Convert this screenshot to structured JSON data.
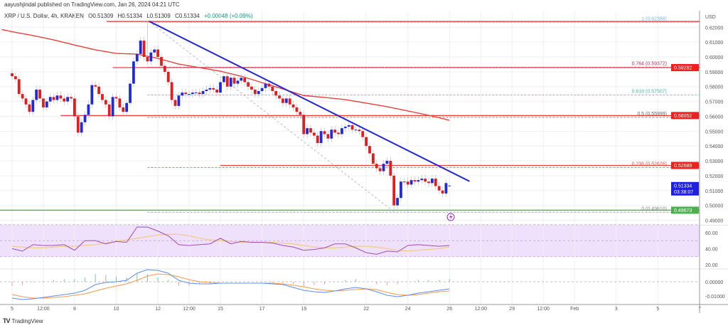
{
  "header": {
    "published": "aayushjindal published on TradingView.com, Jan 26, 2024 04:21 UTC",
    "symbol": "XRP / U.S. Dollar, 4h, KRAKEN",
    "open": "O0.51309",
    "high": "H0.51334",
    "low": "L0.51309",
    "close": "C0.51334",
    "change": "+0.00048 (+0.09%)"
  },
  "brand": {
    "logo": "TV",
    "name": "TradingView"
  },
  "colors": {
    "up": "#1e2bd6",
    "down": "#e01e1e",
    "sma": "#e8413c",
    "trendline": "#2626d9",
    "support": "#4caf50",
    "rsi": "#9c4fb0",
    "rsi_ma": "#f5c98a",
    "rsi_band": "#efe0fb",
    "macd": "#5b8ff0",
    "signal": "#f59a4a",
    "last_price": "#1f1fe0"
  },
  "chart_data": [
    {
      "type": "candlestick",
      "interval": "4h",
      "start": "2024-01-05T00:00",
      "currency_label": "USD",
      "candles": {
        "close": [
          0.587,
          0.585,
          0.575,
          0.572,
          0.568,
          0.563,
          0.571,
          0.578,
          0.572,
          0.566,
          0.57,
          0.573,
          0.571,
          0.574,
          0.572,
          0.57,
          0.573,
          0.572,
          0.56,
          0.549,
          0.556,
          0.561,
          0.568,
          0.581,
          0.58,
          0.575,
          0.571,
          0.568,
          0.56,
          0.573,
          0.572,
          0.566,
          0.563,
          0.569,
          0.582,
          0.597,
          0.602,
          0.611,
          0.6,
          0.597,
          0.603,
          0.605,
          0.6,
          0.594,
          0.59,
          0.583,
          0.571,
          0.567,
          0.574,
          0.576,
          0.575,
          0.575,
          0.576,
          0.576,
          0.575,
          0.577,
          0.578,
          0.579,
          0.578,
          0.576,
          0.583,
          0.587,
          0.58,
          0.586,
          0.582,
          0.584,
          0.586,
          0.583,
          0.58,
          0.578,
          0.575,
          0.577,
          0.579,
          0.582,
          0.58,
          0.577,
          0.574,
          0.572,
          0.569,
          0.572,
          0.568,
          0.566,
          0.563,
          0.561,
          0.548,
          0.552,
          0.549,
          0.547,
          0.542,
          0.55,
          0.548,
          0.545,
          0.551,
          0.549,
          0.548,
          0.552,
          0.553,
          0.554,
          0.551,
          0.551,
          0.55,
          0.546,
          0.54,
          0.535,
          0.528,
          0.525,
          0.523,
          0.528,
          0.53,
          0.52,
          0.5,
          0.505,
          0.516,
          0.516,
          0.514,
          0.517,
          0.516,
          0.517,
          0.518,
          0.516,
          0.515,
          0.518,
          0.513,
          0.51,
          0.508,
          0.515,
          0.51334
        ],
        "last": {
          "open": 0.51309,
          "high": 0.51334,
          "low": 0.51309,
          "close": 0.51334
        },
        "swing_high": {
          "date": "2024-01-11T12:00",
          "price": 0.62388
        },
        "swing_low": {
          "date": "2024-01-23T08:00",
          "price": 0.4961
        }
      },
      "sma": [
        {
          "date": "2024-01-04T12:00",
          "value": 0.6185
        },
        {
          "date": "2024-01-05T00:00",
          "value": 0.617
        },
        {
          "date": "2024-01-06T00:00",
          "value": 0.6144
        },
        {
          "date": "2024-01-07T00:00",
          "value": 0.6115
        },
        {
          "date": "2024-01-08T00:00",
          "value": 0.608
        },
        {
          "date": "2024-01-09T00:00",
          "value": 0.6048
        },
        {
          "date": "2024-01-10T00:00",
          "value": 0.6024
        },
        {
          "date": "2024-01-11T00:00",
          "value": 0.6019
        },
        {
          "date": "2024-01-12T00:00",
          "value": 0.599
        },
        {
          "date": "2024-01-13T00:00",
          "value": 0.5952
        },
        {
          "date": "2024-01-14T00:00",
          "value": 0.5928
        },
        {
          "date": "2024-01-15T00:00",
          "value": 0.5904
        },
        {
          "date": "2024-01-16T00:00",
          "value": 0.587
        },
        {
          "date": "2024-01-17T00:00",
          "value": 0.5827
        },
        {
          "date": "2024-01-18T00:00",
          "value": 0.5784
        },
        {
          "date": "2024-01-19T00:00",
          "value": 0.574
        },
        {
          "date": "2024-01-20T00:00",
          "value": 0.5727
        },
        {
          "date": "2024-01-21T00:00",
          "value": 0.5712
        },
        {
          "date": "2024-01-22T00:00",
          "value": 0.5689
        },
        {
          "date": "2024-01-23T00:00",
          "value": 0.5665
        },
        {
          "date": "2024-01-24T00:00",
          "value": 0.5636
        },
        {
          "date": "2024-01-25T00:00",
          "value": 0.5607
        },
        {
          "date": "2024-01-26T00:00",
          "value": 0.5573
        }
      ],
      "trendline": {
        "from": {
          "date": "2024-01-11T14:00",
          "price": 0.624
        },
        "to": {
          "date": "2024-01-26T23:00",
          "price": 0.5162
        }
      },
      "fib_guide": {
        "from": {
          "date": "2024-01-11T14:00",
          "price": 0.62388
        },
        "to": {
          "date": "2024-01-23T07:00",
          "price": 0.4961
        }
      },
      "horizontal_lines": [
        {
          "price": 0.62388,
          "from": "2024-01-09T13:00",
          "color": "#e8413c",
          "style": "solid"
        },
        {
          "price": 0.59282,
          "from": "2024-01-09T20:00",
          "color": "#e8413c",
          "style": "solid"
        },
        {
          "price": 0.56052,
          "from": "2024-01-07T08:00",
          "color": "#e8413c",
          "style": "solid"
        },
        {
          "price": 0.52689,
          "from": "2024-01-15T00:00",
          "color": "#e8413c",
          "style": "solid"
        },
        {
          "price": 0.49673,
          "from": "2024-01-04T00:00",
          "color": "#4caf50",
          "style": "solid"
        }
      ],
      "fib_levels": [
        {
          "label": "1 (0.62388)",
          "price": 0.62388,
          "color": "#7fb2d9"
        },
        {
          "label": "0.764 (0.59372)",
          "price": 0.59372,
          "color": "#b0345a"
        },
        {
          "label": "0.618 (0.57507)",
          "price": 0.57507,
          "color": "#3fbf9f"
        },
        {
          "label": "0.5 (0.55999)",
          "price": 0.55999,
          "color": "#666666"
        },
        {
          "label": "0.236 (0.52626)",
          "price": 0.52626,
          "color": "#d9534f"
        },
        {
          "label": "0 (0.49610)",
          "price": 0.4961,
          "color": "#888888"
        }
      ],
      "fib_from": "2024-01-11T12:00",
      "price_badges": [
        {
          "text": "0.59282",
          "price": 0.59282,
          "color": "#f21f1f"
        },
        {
          "text": "0.56052",
          "price": 0.56052,
          "color": "#f21f1f"
        },
        {
          "text": "0.52689",
          "price": 0.52689,
          "color": "#f21f1f"
        },
        {
          "text": "0.51334",
          "sub": "03:38:07",
          "price": 0.51334,
          "color": "#1f1fe0"
        },
        {
          "text": "0.49673",
          "price": 0.49673,
          "color": "#4caf50"
        }
      ],
      "yaxis": {
        "ticks": [
          "0.62000",
          "0.61000",
          "0.60000",
          "0.59000",
          "0.58000",
          "0.57000",
          "0.56000",
          "0.55000",
          "0.54000",
          "0.53000",
          "0.52000",
          "0.51000",
          "0.50000",
          "0.49000"
        ],
        "ylim": [
          0.485,
          0.63
        ]
      },
      "xaxis": {
        "ticks": [
          {
            "label": "5",
            "date": "2024-01-05T00:00"
          },
          {
            "label": "12:00",
            "date": "2024-01-06T12:00"
          },
          {
            "label": "8",
            "date": "2024-01-08T00:00"
          },
          {
            "label": "10",
            "date": "2024-01-10T00:00"
          },
          {
            "label": "12",
            "date": "2024-01-12T00:00"
          },
          {
            "label": "12:00",
            "date": "2024-01-13T12:00"
          },
          {
            "label": "15",
            "date": "2024-01-15T00:00"
          },
          {
            "label": "17",
            "date": "2024-01-17T00:00"
          },
          {
            "label": "19",
            "date": "2024-01-19T00:00"
          },
          {
            "label": "22",
            "date": "2024-01-22T00:00"
          },
          {
            "label": "24",
            "date": "2024-01-24T00:00"
          },
          {
            "label": "26",
            "date": "2024-01-26T00:00"
          },
          {
            "label": "12:00",
            "date": "2024-01-27T12:00"
          },
          {
            "label": "29",
            "date": "2024-01-29T00:00"
          },
          {
            "label": "12:00",
            "date": "2024-01-30T12:00"
          },
          {
            "label": "Feb",
            "date": "2024-02-01T00:00"
          },
          {
            "label": "3",
            "date": "2024-02-03T00:00"
          },
          {
            "label": "5",
            "date": "2024-02-05T00:00"
          },
          {
            "label": "7",
            "date": "2024-02-07T00:00"
          }
        ]
      }
    },
    {
      "type": "line",
      "indicator": "RSI",
      "start": "2024-01-05T00:00",
      "step": "12h",
      "band": [
        30,
        70
      ],
      "yaxis_ticks": [
        "60.00",
        "40.00",
        "20.00"
      ],
      "rsi": [
        40,
        37,
        45,
        44,
        44,
        45,
        38,
        50,
        50,
        46,
        49,
        48,
        67,
        67,
        62,
        56,
        45,
        44,
        45,
        46,
        53,
        46,
        49,
        48,
        48,
        47,
        44,
        42,
        38,
        39,
        41,
        46,
        46,
        41,
        35,
        33,
        37,
        36,
        44,
        45,
        44,
        43,
        44
      ],
      "rsi_ma": [
        43,
        42,
        41,
        41,
        42,
        43,
        43,
        44,
        45,
        47,
        49,
        51,
        53,
        55,
        57,
        58,
        58,
        56,
        53,
        51,
        50,
        49,
        48,
        48,
        48,
        48,
        47,
        46,
        44,
        42,
        41,
        41,
        42,
        43,
        43,
        42,
        40,
        38,
        37,
        38,
        39,
        40,
        42
      ]
    },
    {
      "type": "line",
      "indicator": "MACD",
      "start": "2024-01-05T00:00",
      "step": "12h",
      "yaxis_ticks": [
        "0.00000",
        "-0.01000"
      ],
      "macd": [
        -0.0115,
        -0.0125,
        -0.012,
        -0.011,
        -0.01,
        -0.009,
        -0.008,
        -0.006,
        -0.002,
        -0.0005,
        0.0,
        0.001,
        0.006,
        0.0085,
        0.008,
        0.006,
        0.001,
        -0.001,
        -0.0015,
        -0.0015,
        -0.001,
        -0.001,
        -0.001,
        -0.001,
        -0.001,
        -0.0015,
        -0.002,
        -0.004,
        -0.006,
        -0.007,
        -0.0075,
        -0.0065,
        -0.005,
        -0.004,
        -0.005,
        -0.007,
        -0.0095,
        -0.0105,
        -0.0095,
        -0.008,
        -0.007,
        -0.006,
        -0.005
      ],
      "signal": [
        -0.009,
        -0.0105,
        -0.0115,
        -0.0115,
        -0.011,
        -0.0105,
        -0.0095,
        -0.0085,
        -0.0065,
        -0.0045,
        -0.003,
        -0.0015,
        0.001,
        0.004,
        0.0055,
        0.005,
        0.0035,
        0.0015,
        0.0,
        -0.0005,
        -0.001,
        -0.001,
        -0.001,
        -0.001,
        -0.001,
        -0.001,
        -0.0015,
        -0.0025,
        -0.0035,
        -0.005,
        -0.006,
        -0.0065,
        -0.006,
        -0.0055,
        -0.005,
        -0.0055,
        -0.0075,
        -0.009,
        -0.0095,
        -0.009,
        -0.008,
        -0.007,
        -0.0065
      ]
    }
  ]
}
